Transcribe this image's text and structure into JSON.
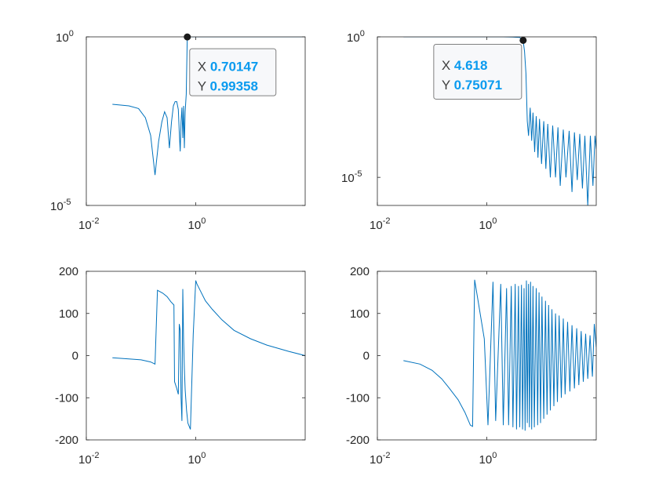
{
  "colors": {
    "series": "#0072bd",
    "axis": "#262626",
    "tip_value": "#0b9bef",
    "tip_border": "#808080"
  },
  "chart_data": [
    {
      "type": "line",
      "position": "top-left",
      "xscale": "log",
      "yscale": "log",
      "xlim": [
        0.01,
        100
      ],
      "ylim": [
        1e-05,
        1
      ],
      "xticks": [
        {
          "value": 0.01,
          "base": "10",
          "exp": "-2"
        },
        {
          "value": 1,
          "base": "10",
          "exp": "0"
        }
      ],
      "yticks": [
        {
          "value": 1e-05,
          "base": "10",
          "exp": "-5"
        },
        {
          "value": 1,
          "base": "10",
          "exp": "0"
        }
      ],
      "series": [
        {
          "x": [
            0.03,
            0.06,
            0.09,
            0.12,
            0.15,
            0.18,
            0.21,
            0.24,
            0.27,
            0.3,
            0.33,
            0.36,
            0.39,
            0.42,
            0.45,
            0.48,
            0.5,
            0.52,
            0.54,
            0.56,
            0.58,
            0.6,
            0.62,
            0.64,
            0.67,
            0.7,
            0.72,
            0.78,
            0.9,
            1.2,
            2,
            5,
            10,
            20,
            50,
            100
          ],
          "y": [
            0.01,
            0.009,
            0.0075,
            0.004,
            0.0012,
            8e-05,
            0.0008,
            0.003,
            0.006,
            0.004,
            0.0005,
            0.003,
            0.009,
            0.012,
            0.012,
            0.007,
            0.0015,
            0.0004,
            0.003,
            0.008,
            0.001,
            0.009,
            0.0005,
            0.006,
            0.02,
            0.99358,
            1,
            1,
            1,
            1,
            1,
            1,
            1,
            1,
            1,
            1
          ]
        }
      ],
      "datatip": {
        "x_label": "X",
        "x_value": "0.70147",
        "y_label": "Y",
        "y_value": "0.99358",
        "x": 0.70147,
        "y": 0.99358
      }
    },
    {
      "type": "line",
      "position": "top-right",
      "xscale": "log",
      "yscale": "log",
      "xlim": [
        0.01,
        100
      ],
      "ylim": [
        1e-06,
        1
      ],
      "xticks": [
        {
          "value": 0.01,
          "base": "10",
          "exp": "-2"
        },
        {
          "value": 1,
          "base": "10",
          "exp": "0"
        }
      ],
      "yticks": [
        {
          "value": 1e-05,
          "base": "10",
          "exp": "-5"
        },
        {
          "value": 1,
          "base": "10",
          "exp": "0"
        }
      ],
      "series": [
        {
          "x": [
            0.03,
            0.1,
            0.5,
            1,
            2,
            3,
            4,
            4.618,
            4.9,
            5.2,
            5.5,
            5.8,
            6.2,
            6.6,
            7,
            7.5,
            8,
            8.6,
            9.2,
            10,
            11,
            12,
            13,
            14.5,
            16,
            18,
            20,
            22,
            25,
            28,
            32,
            36,
            40,
            45,
            50,
            56,
            62,
            70,
            78,
            87,
            95,
            100
          ],
          "y": [
            1,
            1,
            1,
            1,
            1,
            0.99,
            0.95,
            0.75071,
            0.3,
            0.05,
            0.001,
            0.0003,
            0.003,
            0.0002,
            0.002,
            8e-05,
            0.0015,
            5e-05,
            0.0012,
            3e-05,
            0.001,
            2e-05,
            0.0008,
            1e-05,
            0.0007,
            1e-05,
            0.0006,
            5e-06,
            0.0005,
            1e-05,
            0.00045,
            3e-06,
            0.0004,
            8e-06,
            0.00035,
            4e-06,
            0.0003,
            1e-06,
            0.0003,
            5e-06,
            0.0003,
            0.0001
          ]
        }
      ],
      "datatip": {
        "x_label": "X",
        "x_value": "4.618",
        "y_label": "Y",
        "y_value": "0.75071",
        "x": 4.618,
        "y": 0.75071
      }
    },
    {
      "type": "line",
      "position": "bottom-left",
      "xscale": "log",
      "yscale": "linear",
      "xlim": [
        0.01,
        100
      ],
      "ylim": [
        -200,
        200
      ],
      "xticks": [
        {
          "value": 0.01,
          "base": "10",
          "exp": "-2"
        },
        {
          "value": 1,
          "base": "10",
          "exp": "0"
        }
      ],
      "yticks": [
        {
          "value": 200,
          "label": "200"
        },
        {
          "value": 100,
          "label": "100"
        },
        {
          "value": 0,
          "label": "0"
        },
        {
          "value": -100,
          "label": "-100"
        },
        {
          "value": -200,
          "label": "-200"
        }
      ],
      "series": [
        {
          "x": [
            0.03,
            0.06,
            0.1,
            0.15,
            0.18,
            0.2,
            0.25,
            0.3,
            0.35,
            0.4,
            0.41,
            0.45,
            0.48,
            0.5,
            0.52,
            0.54,
            0.56,
            0.58,
            0.6,
            0.62,
            0.64,
            0.68,
            0.72,
            0.8,
            0.9,
            1,
            1.05,
            1.5,
            2,
            3,
            5,
            10,
            20,
            50,
            100
          ],
          "y": [
            -5,
            -8,
            -10,
            -15,
            -20,
            155,
            148,
            140,
            128,
            120,
            -62,
            -78,
            -92,
            75,
            60,
            -100,
            -155,
            158,
            40,
            -30,
            -80,
            -130,
            -160,
            -175,
            50,
            178,
            170,
            130,
            110,
            85,
            60,
            40,
            25,
            10,
            0
          ]
        }
      ]
    },
    {
      "type": "line",
      "position": "bottom-right",
      "xscale": "log",
      "yscale": "linear",
      "xlim": [
        0.01,
        100
      ],
      "ylim": [
        -200,
        200
      ],
      "xticks": [
        {
          "value": 0.01,
          "base": "10",
          "exp": "-2"
        },
        {
          "value": 1,
          "base": "10",
          "exp": "0"
        }
      ],
      "yticks": [
        {
          "value": 200,
          "label": "200"
        },
        {
          "value": 100,
          "label": "100"
        },
        {
          "value": 0,
          "label": "0"
        },
        {
          "value": -100,
          "label": "-100"
        },
        {
          "value": -200,
          "label": "-200"
        }
      ],
      "series": [
        {
          "x": [
            0.03,
            0.06,
            0.1,
            0.15,
            0.2,
            0.3,
            0.4,
            0.5,
            0.55,
            0.6,
            0.9,
            1.05,
            1.3,
            1.45,
            1.8,
            2,
            2.3,
            2.5,
            2.8,
            3,
            3.3,
            3.5,
            3.8,
            4,
            4.3,
            4.5,
            4.8,
            5,
            5.3,
            5.5,
            5.8,
            6,
            6.3,
            6.6,
            7,
            7.4,
            8,
            8.5,
            9,
            9.6,
            10.2,
            11,
            11.8,
            12.6,
            13.5,
            14.5,
            15.5,
            16.8,
            18,
            19.5,
            21,
            23,
            25,
            27,
            30,
            33,
            36,
            40,
            44,
            48,
            53,
            58,
            64,
            70,
            77,
            85,
            92,
            100
          ],
          "y": [
            -12,
            -20,
            -35,
            -55,
            -75,
            -105,
            -135,
            -165,
            -168,
            180,
            40,
            -165,
            175,
            -155,
            170,
            -165,
            160,
            -165,
            165,
            -170,
            170,
            -175,
            165,
            -170,
            168,
            -175,
            160,
            -178,
            178,
            -160,
            170,
            -170,
            175,
            -175,
            165,
            -170,
            160,
            -165,
            150,
            -160,
            140,
            -150,
            130,
            -140,
            120,
            -130,
            110,
            -120,
            100,
            -110,
            95,
            -100,
            88,
            -92,
            80,
            -85,
            72,
            -78,
            65,
            -70,
            58,
            -62,
            52,
            -55,
            48,
            -50,
            75,
            20
          ]
        }
      ]
    }
  ]
}
